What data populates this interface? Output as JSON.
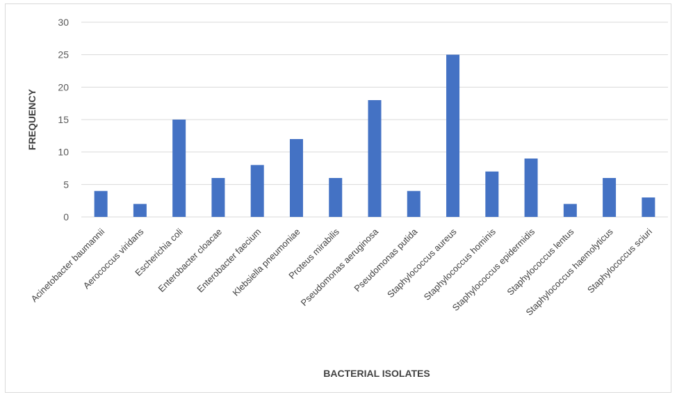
{
  "chart_data": {
    "type": "bar",
    "xlabel": "BACTERIAL ISOLATES",
    "ylabel": "FREQUENCY",
    "ylim": [
      0,
      30
    ],
    "yticks": [
      0,
      5,
      10,
      15,
      20,
      25,
      30
    ],
    "grid": true,
    "legend": "none",
    "bar_color": "#4472C4",
    "categories": [
      "Acinetobacter baumannii",
      "Aerococcus viridans",
      "Escherichia coli",
      "Enterobacter cloacae",
      "Enterobacter faecium",
      "Klebsiella pneumoniae",
      "Proteus mirabilis",
      "Pseudomonas aeruginosa",
      "Pseudomonas putida",
      "Staphylococcus aureus",
      "Staphylococcus hominis",
      "Staphylococcus epidermidis",
      "Staphylococcus lentus",
      "Staphylococcus haemolyticus",
      "Staphylococcus sciuri"
    ],
    "values": [
      4,
      2,
      15,
      6,
      8,
      12,
      6,
      18,
      4,
      25,
      7,
      9,
      2,
      6,
      3
    ]
  }
}
